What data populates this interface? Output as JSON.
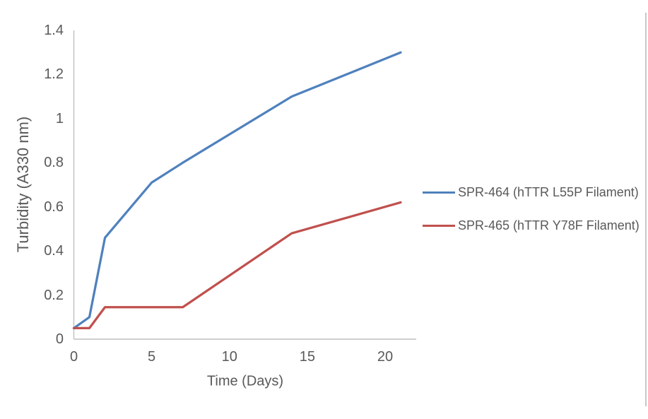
{
  "chart_data": {
    "type": "line",
    "title": "",
    "xlabel": "Time (Days)",
    "ylabel": "Turbidity (A330 nm)",
    "x": [
      0,
      1,
      2,
      5,
      7,
      14,
      21
    ],
    "series": [
      {
        "name": "SPR-464 (hTTR L55P Filament)",
        "color": "#4F81BD",
        "values": [
          0.05,
          0.1,
          0.46,
          0.71,
          0.8,
          1.1,
          1.3
        ]
      },
      {
        "name": "SPR-465 (hTTR Y78F Filament)",
        "color": "#C0504D",
        "values": [
          0.05,
          0.05,
          0.145,
          0.145,
          0.145,
          0.48,
          0.62
        ]
      }
    ],
    "xlim": [
      0,
      22
    ],
    "ylim": [
      0,
      1.4
    ],
    "x_ticks": {
      "values": [
        0,
        5,
        10,
        15,
        20
      ],
      "labels": [
        "0",
        "5",
        "10",
        "15",
        "20"
      ]
    },
    "y_ticks": {
      "values": [
        0,
        0.2,
        0.4,
        0.6,
        0.8,
        1,
        1.2,
        1.4
      ],
      "labels": [
        "0",
        "0.2",
        "0.4",
        "0.6",
        "0.8",
        "1",
        "1.2",
        "1.4"
      ]
    },
    "grid": false,
    "legend_position": "right-center",
    "markers": false,
    "line_width": 3.25,
    "axis_color": "#BFBFBF",
    "text_color": "#595959",
    "frame_border_color": "#C8C8C8"
  }
}
